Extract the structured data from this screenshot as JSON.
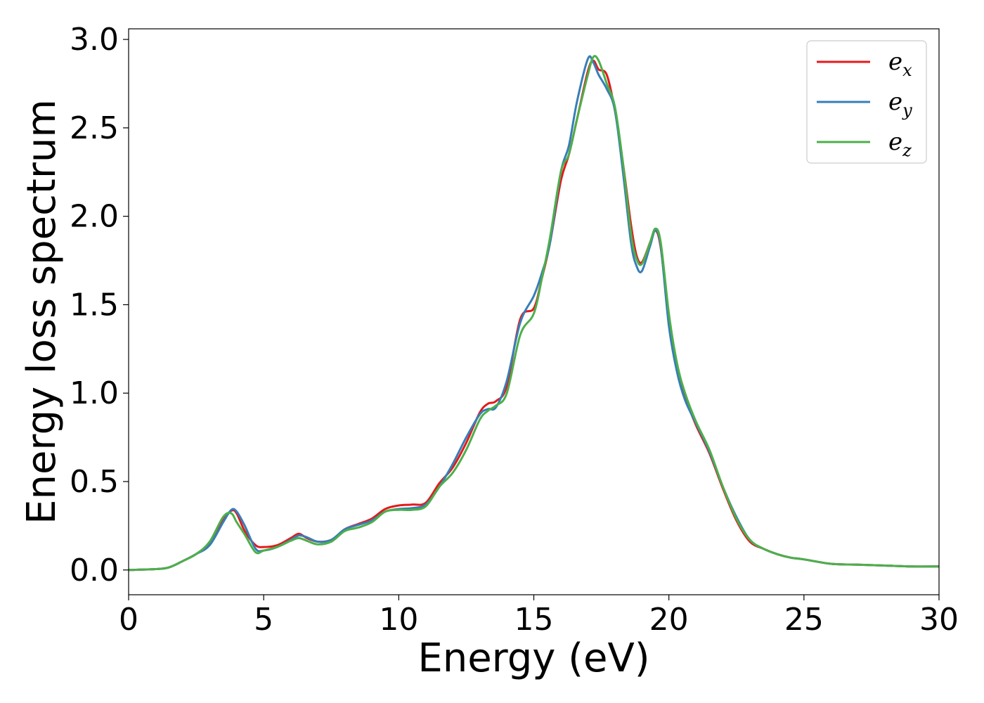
{
  "chart_data": {
    "type": "line",
    "xlabel": "Energy (eV)",
    "ylabel": "Energy loss spectrum",
    "xlim": [
      0,
      30
    ],
    "ylim": [
      -0.14,
      3.06
    ],
    "xticks": [
      "0",
      "5",
      "10",
      "15",
      "20",
      "25",
      "30"
    ],
    "yticks": [
      "0.0",
      "0.5",
      "1.0",
      "1.5",
      "2.0",
      "2.5",
      "3.0"
    ],
    "grid": false,
    "legend_position": "top-right",
    "series": [
      {
        "name": "e_x",
        "label_base": "e",
        "label_sub": "x",
        "color": "#e41a1c",
        "x": [
          0,
          1,
          1.5,
          2,
          2.5,
          3,
          3.5,
          3.8,
          4.0,
          4.3,
          4.7,
          5.0,
          5.5,
          6.0,
          6.3,
          6.6,
          7.0,
          7.5,
          8.0,
          8.5,
          9.0,
          9.5,
          10.0,
          10.5,
          11.0,
          11.5,
          12.0,
          12.5,
          13.0,
          13.3,
          13.6,
          14.0,
          14.5,
          15.0,
          15.3,
          15.6,
          16.0,
          16.3,
          16.6,
          17.0,
          17.2,
          17.4,
          17.7,
          18.0,
          18.3,
          18.6,
          18.8,
          19.0,
          19.3,
          19.5,
          19.7,
          20.0,
          20.3,
          20.6,
          21.0,
          21.5,
          22.0,
          22.5,
          23.0,
          23.5,
          24.0,
          24.5,
          25.0,
          26.0,
          27.0,
          28.0,
          29.0,
          30.0
        ],
        "y": [
          0.0,
          0.005,
          0.015,
          0.05,
          0.09,
          0.15,
          0.28,
          0.335,
          0.32,
          0.22,
          0.14,
          0.13,
          0.14,
          0.18,
          0.205,
          0.18,
          0.16,
          0.17,
          0.23,
          0.26,
          0.29,
          0.345,
          0.365,
          0.37,
          0.38,
          0.49,
          0.58,
          0.72,
          0.89,
          0.94,
          0.955,
          1.04,
          1.42,
          1.48,
          1.65,
          1.85,
          2.2,
          2.35,
          2.55,
          2.82,
          2.88,
          2.83,
          2.8,
          2.6,
          2.3,
          1.95,
          1.78,
          1.74,
          1.85,
          1.92,
          1.82,
          1.42,
          1.15,
          0.98,
          0.82,
          0.66,
          0.46,
          0.28,
          0.16,
          0.12,
          0.09,
          0.07,
          0.06,
          0.035,
          0.03,
          0.025,
          0.02,
          0.02
        ]
      },
      {
        "name": "e_y",
        "label_base": "e",
        "label_sub": "y",
        "color": "#377eb8",
        "x": [
          0,
          1,
          1.5,
          2,
          2.5,
          3,
          3.5,
          3.8,
          4.0,
          4.3,
          4.7,
          5.0,
          5.5,
          6.0,
          6.3,
          6.6,
          7.0,
          7.5,
          8.0,
          8.5,
          9.0,
          9.5,
          10.0,
          10.5,
          11.0,
          11.5,
          12.0,
          12.5,
          13.0,
          13.3,
          13.6,
          14.0,
          14.5,
          15.0,
          15.3,
          15.6,
          16.0,
          16.3,
          16.6,
          17.0,
          17.2,
          17.4,
          17.7,
          18.0,
          18.3,
          18.6,
          18.8,
          19.0,
          19.3,
          19.5,
          19.7,
          20.0,
          20.3,
          20.6,
          21.0,
          21.5,
          22.0,
          22.5,
          23.0,
          23.5,
          24.0,
          24.5,
          25.0,
          26.0,
          27.0,
          28.0,
          29.0,
          30.0
        ],
        "y": [
          0.0,
          0.005,
          0.015,
          0.05,
          0.09,
          0.14,
          0.27,
          0.34,
          0.33,
          0.25,
          0.12,
          0.11,
          0.13,
          0.17,
          0.195,
          0.185,
          0.16,
          0.17,
          0.23,
          0.255,
          0.28,
          0.33,
          0.345,
          0.35,
          0.37,
          0.47,
          0.6,
          0.75,
          0.88,
          0.91,
          0.92,
          1.07,
          1.4,
          1.55,
          1.68,
          1.85,
          2.25,
          2.4,
          2.65,
          2.89,
          2.87,
          2.8,
          2.72,
          2.6,
          2.25,
          1.85,
          1.72,
          1.69,
          1.83,
          1.92,
          1.83,
          1.38,
          1.12,
          0.96,
          0.83,
          0.67,
          0.47,
          0.3,
          0.17,
          0.12,
          0.09,
          0.07,
          0.06,
          0.035,
          0.03,
          0.025,
          0.02,
          0.02
        ]
      },
      {
        "name": "e_z",
        "label_base": "e",
        "label_sub": "z",
        "color": "#4daf4a",
        "x": [
          0,
          1,
          1.5,
          2,
          2.5,
          3,
          3.5,
          3.8,
          4.0,
          4.3,
          4.7,
          5.0,
          5.5,
          6.0,
          6.3,
          6.6,
          7.0,
          7.5,
          8.0,
          8.5,
          9.0,
          9.5,
          10.0,
          10.5,
          11.0,
          11.5,
          12.0,
          12.5,
          13.0,
          13.3,
          13.6,
          14.0,
          14.5,
          15.0,
          15.3,
          15.6,
          16.0,
          16.3,
          16.6,
          17.0,
          17.2,
          17.4,
          17.7,
          18.0,
          18.3,
          18.6,
          18.8,
          19.0,
          19.3,
          19.5,
          19.7,
          20.0,
          20.3,
          20.6,
          21.0,
          21.5,
          22.0,
          22.5,
          23.0,
          23.5,
          24.0,
          24.5,
          25.0,
          26.0,
          27.0,
          28.0,
          29.0,
          30.0
        ],
        "y": [
          0.0,
          0.005,
          0.015,
          0.05,
          0.09,
          0.16,
          0.3,
          0.32,
          0.27,
          0.2,
          0.1,
          0.11,
          0.13,
          0.165,
          0.18,
          0.165,
          0.145,
          0.16,
          0.22,
          0.24,
          0.27,
          0.33,
          0.34,
          0.34,
          0.36,
          0.47,
          0.55,
          0.68,
          0.85,
          0.9,
          0.93,
          1.0,
          1.33,
          1.45,
          1.65,
          1.88,
          2.25,
          2.35,
          2.55,
          2.8,
          2.9,
          2.88,
          2.75,
          2.62,
          2.3,
          1.9,
          1.76,
          1.73,
          1.85,
          1.93,
          1.85,
          1.45,
          1.17,
          1.0,
          0.84,
          0.68,
          0.47,
          0.29,
          0.17,
          0.12,
          0.09,
          0.07,
          0.06,
          0.035,
          0.03,
          0.025,
          0.02,
          0.02
        ]
      }
    ]
  }
}
